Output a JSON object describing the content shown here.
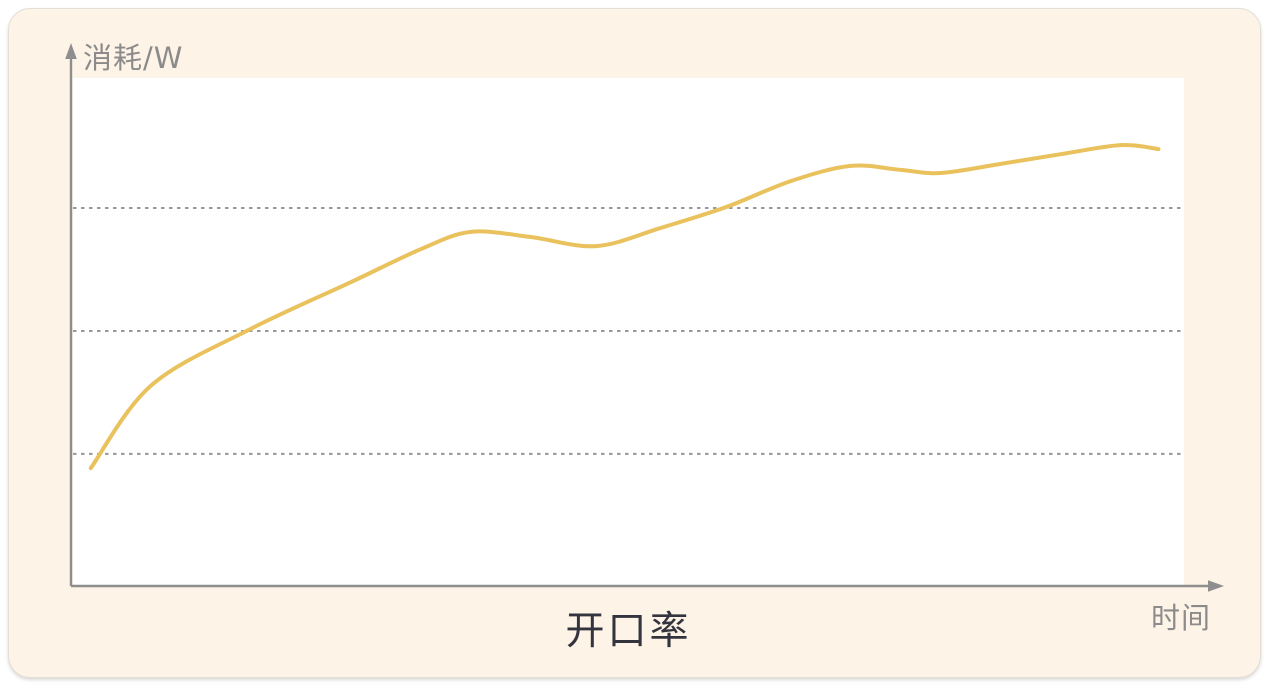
{
  "colors": {
    "card_bg": "#fdf4e7",
    "plot_bg": "#ffffff",
    "axis": "#8e8e8e",
    "gridline": "#98989e",
    "line": "#e9c25d",
    "label_text": "#8b8b8b",
    "title_text": "#34343e"
  },
  "chart_data": {
    "type": "line",
    "title": "开口率",
    "xlabel": "时间",
    "ylabel": "消耗/W",
    "x_range_percent": [
      0,
      100
    ],
    "y_range_percent": [
      0,
      100
    ],
    "grid": "horizontal dotted, no tick labels",
    "legend": "none",
    "gridlines_y_percent": [
      26.0,
      50.2,
      74.4
    ],
    "series": [
      {
        "color": "#e9c25d",
        "points_percent": [
          [
            1.6,
            23.2
          ],
          [
            7.0,
            39.4
          ],
          [
            15.8,
            50.4
          ],
          [
            25.0,
            59.8
          ],
          [
            31.3,
            66.3
          ],
          [
            35.8,
            69.7
          ],
          [
            41.2,
            68.7
          ],
          [
            47.1,
            66.9
          ],
          [
            52.9,
            70.5
          ],
          [
            58.8,
            74.6
          ],
          [
            64.6,
            79.7
          ],
          [
            70.0,
            82.7
          ],
          [
            74.5,
            81.9
          ],
          [
            78.1,
            81.3
          ],
          [
            83.5,
            83.1
          ],
          [
            88.9,
            85.0
          ],
          [
            94.3,
            86.8
          ],
          [
            97.7,
            86.0
          ]
        ]
      }
    ]
  }
}
